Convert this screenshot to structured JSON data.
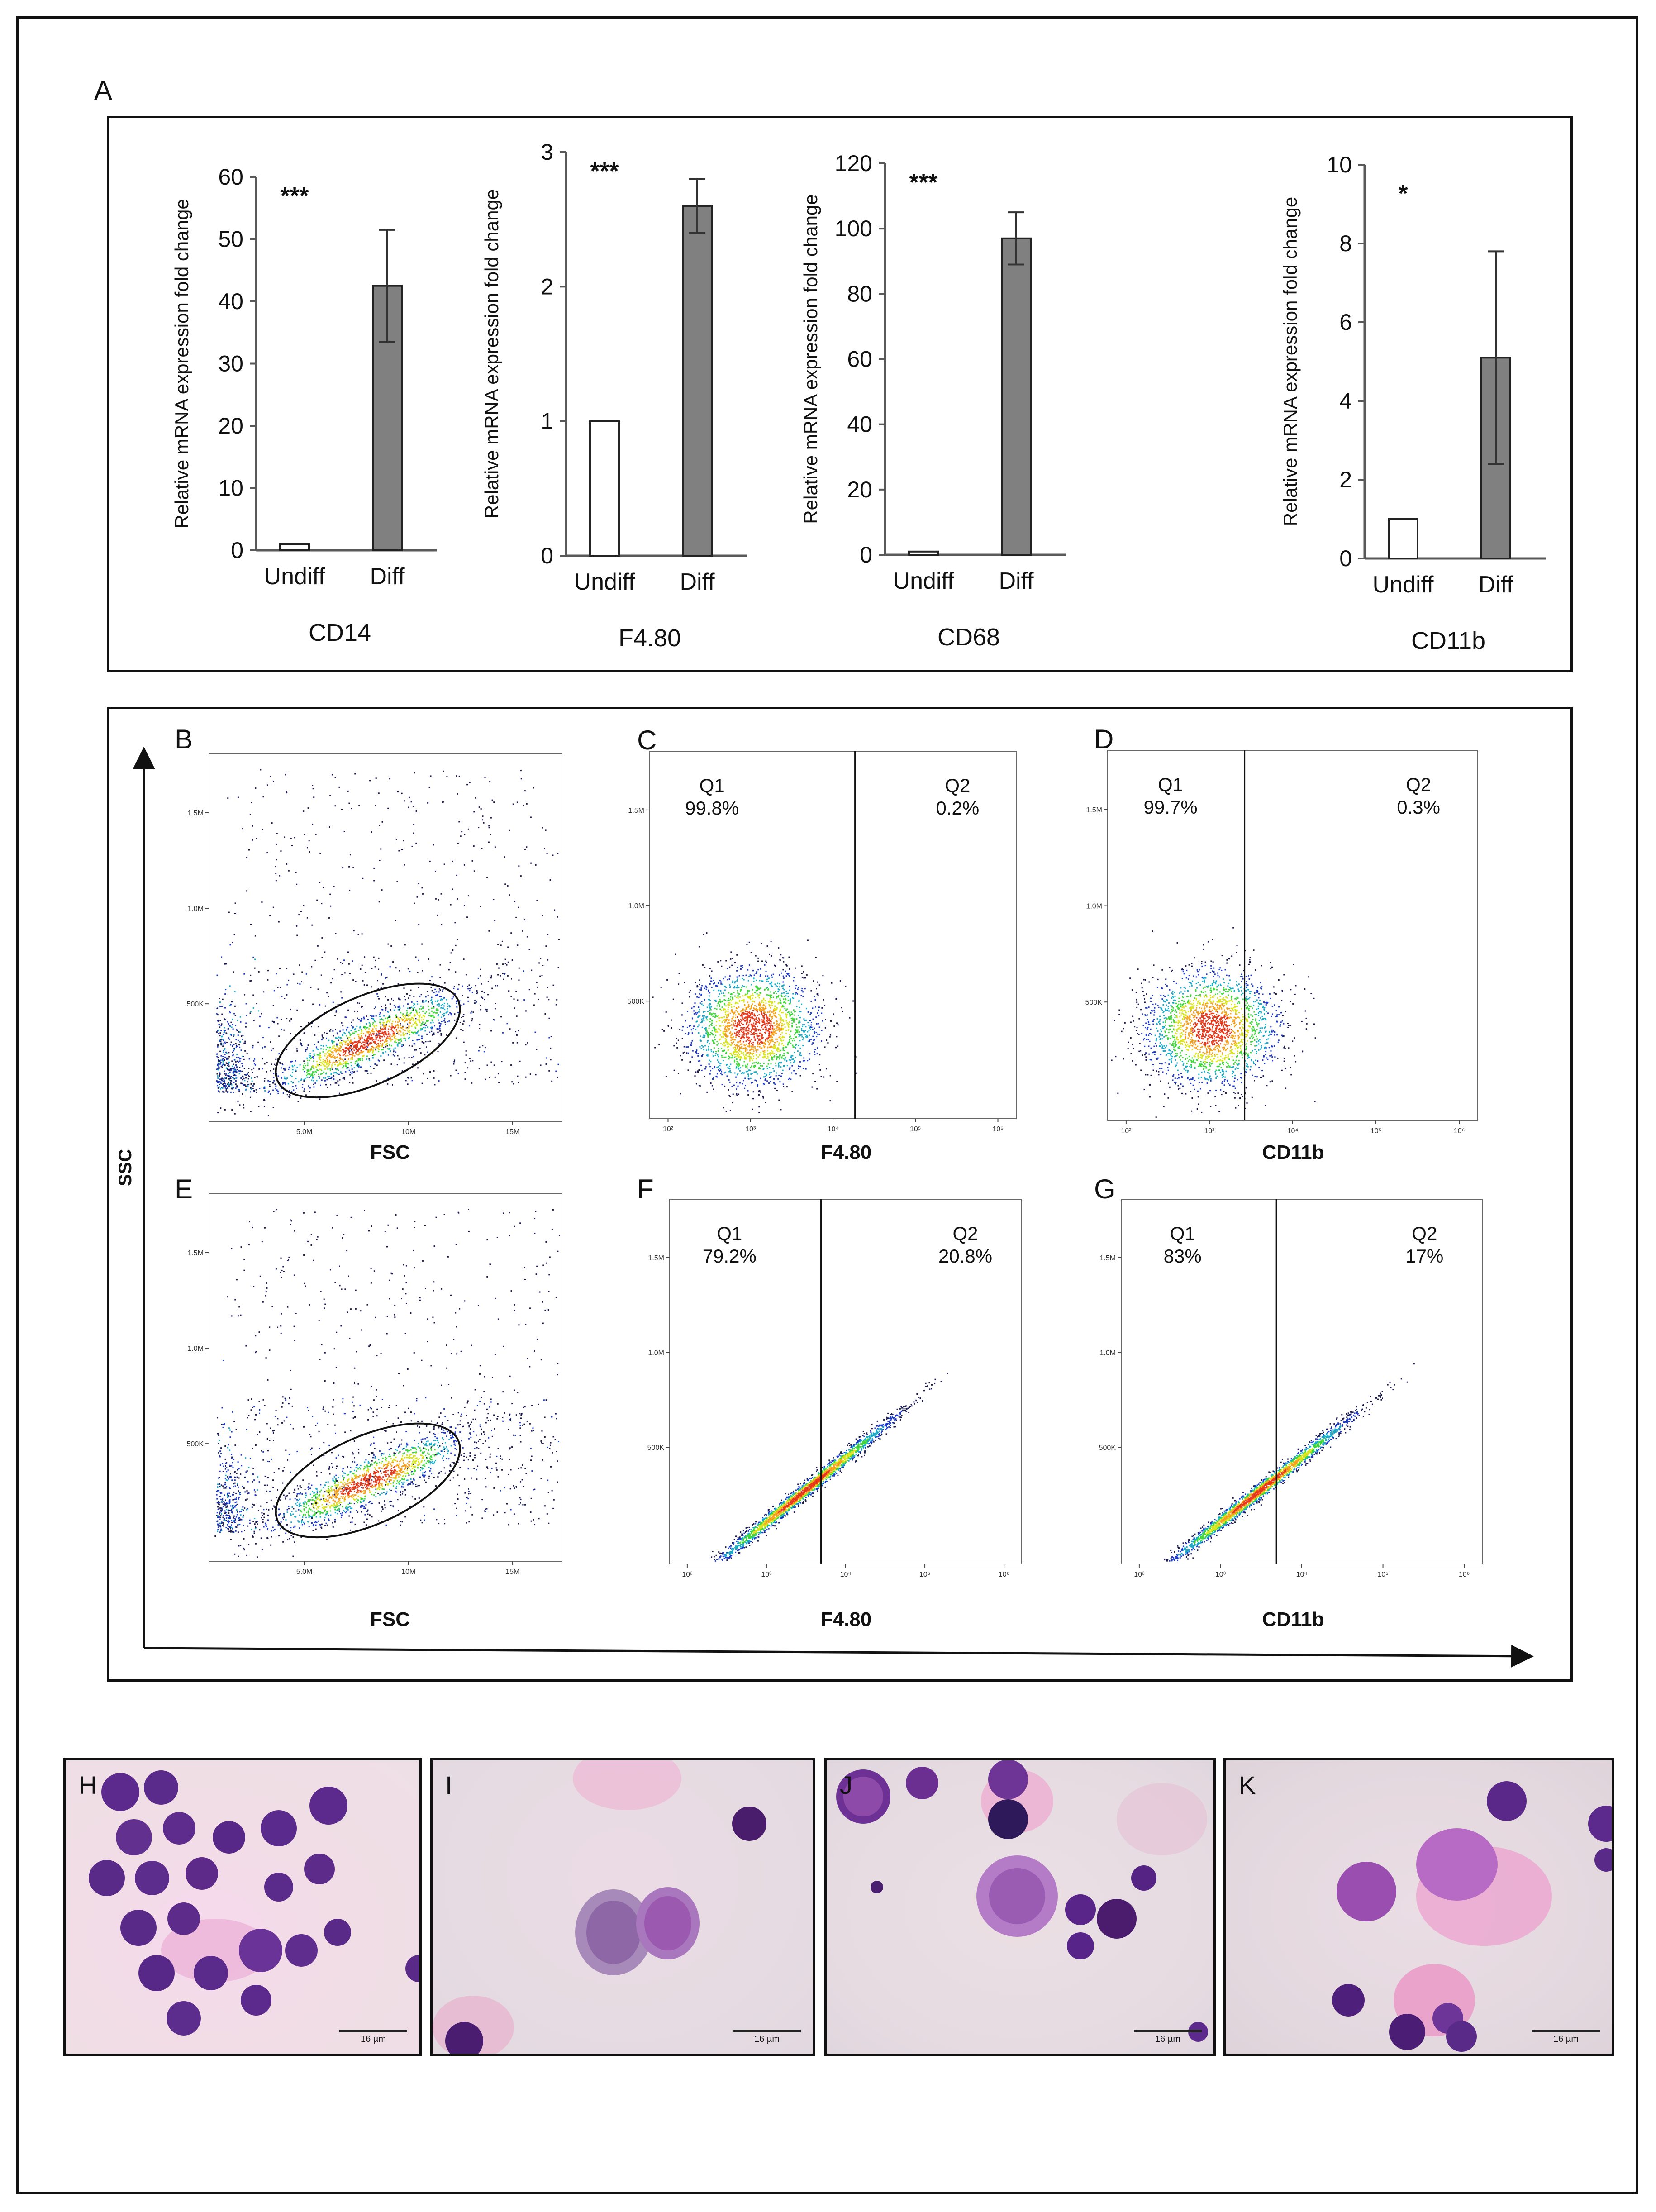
{
  "figure": {
    "panel_a_label": "A",
    "ssc_axis_label": "SSC"
  },
  "colors": {
    "undiff_bar": "#ffffff",
    "diff_bar": "#808080",
    "axis": "#595959",
    "frame": "#111111"
  },
  "chart_data": [
    {
      "type": "bar",
      "id": "cd14",
      "title": "CD14",
      "categories": [
        "Undiff",
        "Diff"
      ],
      "values": [
        1,
        42.5
      ],
      "errors": [
        0,
        9
      ],
      "ylabel": "Relative mRNA expression fold change",
      "ylim": [
        0,
        60
      ],
      "yticks": [
        0,
        10,
        20,
        30,
        40,
        50,
        60
      ],
      "significance": "***"
    },
    {
      "type": "bar",
      "id": "f480",
      "title": "F4.80",
      "categories": [
        "Undiff",
        "Diff"
      ],
      "values": [
        1,
        2.6
      ],
      "errors": [
        0,
        0.2
      ],
      "ylabel": "Relative mRNA expression fold change",
      "ylim": [
        0,
        3
      ],
      "yticks": [
        0,
        1,
        2,
        3
      ],
      "significance": "***"
    },
    {
      "type": "bar",
      "id": "cd68",
      "title": "CD68",
      "categories": [
        "Undiff",
        "Diff"
      ],
      "values": [
        1,
        97
      ],
      "errors": [
        0,
        8
      ],
      "ylabel": "Relative mRNA expression fold change",
      "ylim": [
        0,
        120
      ],
      "yticks": [
        0,
        20,
        40,
        60,
        80,
        100,
        120
      ],
      "significance": "***"
    },
    {
      "type": "bar",
      "id": "cd11b",
      "title": "CD11b",
      "categories": [
        "Undiff",
        "Diff"
      ],
      "values": [
        1,
        5.1
      ],
      "errors": [
        0,
        2.7
      ],
      "ylabel": "Relative mRNA expression fold change",
      "ylim": [
        0,
        10
      ],
      "yticks": [
        0,
        2,
        4,
        6,
        8,
        10
      ],
      "significance": "*"
    },
    {
      "type": "scatter",
      "id": "B",
      "panel": "B",
      "xlabel": "FSC",
      "xticks": [
        "5.0M",
        "10M",
        "15M"
      ],
      "yticks": [
        "500K",
        "1.0M",
        "1.5M"
      ],
      "gate": "ellipse"
    },
    {
      "type": "scatter",
      "id": "C",
      "panel": "C",
      "xlabel": "F4.80",
      "xticks": [
        "10²",
        "10³",
        "10⁴",
        "10⁵",
        "10⁶"
      ],
      "yticks": [
        "500K",
        "1.0M",
        "1.5M"
      ],
      "quadrants": [
        {
          "name": "Q1",
          "percent": "99.8%"
        },
        {
          "name": "Q2",
          "percent": "0.2%"
        }
      ]
    },
    {
      "type": "scatter",
      "id": "D",
      "panel": "D",
      "xlabel": "CD11b",
      "xticks": [
        "10²",
        "10³",
        "10⁴",
        "10⁵",
        "10⁶"
      ],
      "yticks": [
        "500K",
        "1.0M",
        "1.5M"
      ],
      "quadrants": [
        {
          "name": "Q1",
          "percent": "99.7%"
        },
        {
          "name": "Q2",
          "percent": "0.3%"
        }
      ]
    },
    {
      "type": "scatter",
      "id": "E",
      "panel": "E",
      "xlabel": "FSC",
      "xticks": [
        "5.0M",
        "10M",
        "15M"
      ],
      "yticks": [
        "500K",
        "1.0M",
        "1.5M"
      ],
      "gate": "ellipse"
    },
    {
      "type": "scatter",
      "id": "F",
      "panel": "F",
      "xlabel": "F4.80",
      "xticks": [
        "10²",
        "10³",
        "10⁴",
        "10⁵",
        "10⁶"
      ],
      "yticks": [
        "500K",
        "1.0M",
        "1.5M"
      ],
      "quadrants": [
        {
          "name": "Q1",
          "percent": "79.2%"
        },
        {
          "name": "Q2",
          "percent": "20.8%"
        }
      ]
    },
    {
      "type": "scatter",
      "id": "G",
      "panel": "G",
      "xlabel": "CD11b",
      "xticks": [
        "10²",
        "10³",
        "10⁴",
        "10⁵",
        "10⁶"
      ],
      "yticks": [
        "500K",
        "1.0M",
        "1.5M"
      ],
      "quadrants": [
        {
          "name": "Q1",
          "percent": "83%"
        },
        {
          "name": "Q2",
          "percent": "17%"
        }
      ]
    }
  ],
  "micrographs": [
    {
      "label": "H",
      "scale": "16 µm"
    },
    {
      "label": "I",
      "scale": "16 µm"
    },
    {
      "label": "J",
      "scale": "16 µm"
    },
    {
      "label": "K",
      "scale": "16 µm"
    }
  ]
}
